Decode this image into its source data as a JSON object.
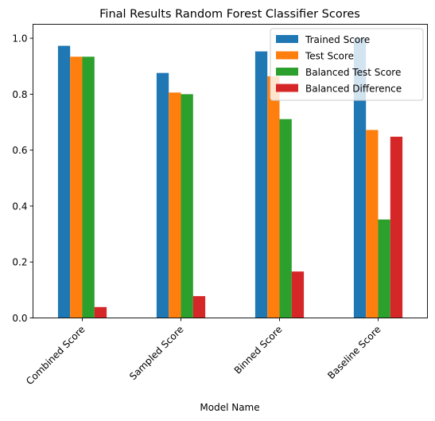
{
  "chart_data": {
    "type": "bar",
    "title": "Final Results Random Forest Classifier Scores",
    "xlabel": "Model Name",
    "ylabel": "",
    "ylim": [
      0,
      1.05
    ],
    "yticks": [
      0.0,
      0.2,
      0.4,
      0.6,
      0.8,
      1.0
    ],
    "ytick_labels": [
      "0.0",
      "0.2",
      "0.4",
      "0.6",
      "0.8",
      "1.0"
    ],
    "categories": [
      "Combined Score",
      "Sampled Score",
      "Binned Score",
      "Baseline Score"
    ],
    "series": [
      {
        "name": "Trained Score",
        "color": "#1f77b4",
        "values": [
          0.973,
          0.876,
          0.953,
          1.0
        ]
      },
      {
        "name": "Test Score",
        "color": "#ff7f0e",
        "values": [
          0.934,
          0.806,
          0.864,
          0.672
        ]
      },
      {
        "name": "Balanced Test Score",
        "color": "#2ca02c",
        "values": [
          0.934,
          0.8,
          0.711,
          0.352
        ]
      },
      {
        "name": "Balanced Difference",
        "color": "#d62728",
        "values": [
          0.039,
          0.078,
          0.166,
          0.648
        ]
      }
    ],
    "grid": false,
    "legend_position": "top-right"
  }
}
